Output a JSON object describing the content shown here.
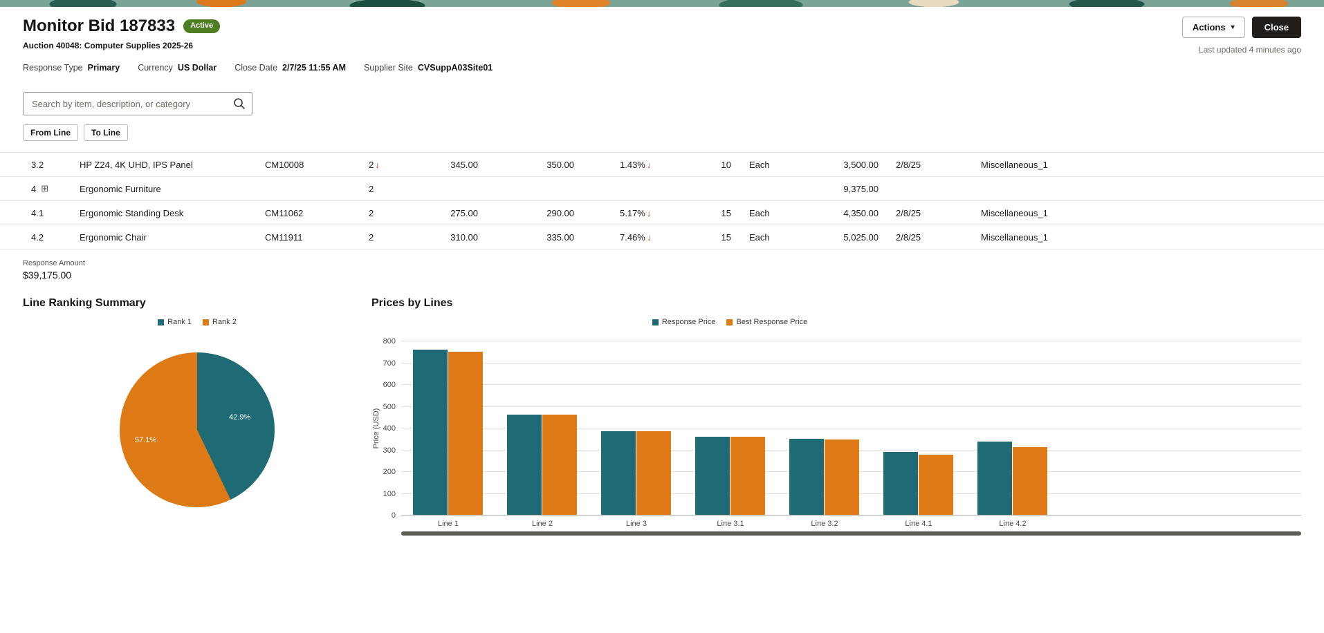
{
  "header": {
    "title": "Monitor Bid 187833",
    "status_badge": "Active",
    "subtitle": "Auction 40048: Computer Supplies 2025-26",
    "actions_label": "Actions",
    "close_label": "Close",
    "last_updated": "Last updated 4 minutes ago"
  },
  "meta": [
    {
      "label": "Response Type",
      "value": "Primary"
    },
    {
      "label": "Currency",
      "value": "US Dollar"
    },
    {
      "label": "Close Date",
      "value": "2/7/25 11:55 AM"
    },
    {
      "label": "Supplier Site",
      "value": "CVSuppA03Site01"
    }
  ],
  "search": {
    "placeholder": "Search by item, description, or category"
  },
  "filters": {
    "from_line_label": "From Line",
    "to_line_label": "To Line"
  },
  "icons": {
    "caret": "▾",
    "group": "⊞",
    "down_arrow": "↓"
  },
  "colors": {
    "status_active": "#4f7d21",
    "accent_teal": "#1f6b75",
    "accent_orange": "#dd7a16",
    "close_button_bg": "#211e1c"
  },
  "table": {
    "rows": [
      {
        "line": "3.2",
        "group": false,
        "description": "HP Z24, 4K UHD, IPS Panel",
        "item": "CM10008",
        "rank": "2",
        "rank_arrow": "↓",
        "price": "345.00",
        "best_price": "350.00",
        "savings": "1.43%",
        "savings_arrow": "↓",
        "quantity": "10",
        "uom": "Each",
        "amount": "3,500.00",
        "date": "2/8/25",
        "category": "Miscellaneous_1"
      },
      {
        "line": "4",
        "group": true,
        "description": "Ergonomic Furniture",
        "item": "",
        "rank": "2",
        "rank_arrow": "",
        "price": "",
        "best_price": "",
        "savings": "",
        "savings_arrow": "",
        "quantity": "",
        "uom": "",
        "amount": "9,375.00",
        "date": "",
        "category": ""
      },
      {
        "line": "4.1",
        "group": false,
        "description": "Ergonomic Standing Desk",
        "item": "CM11062",
        "rank": "2",
        "rank_arrow": "",
        "price": "275.00",
        "best_price": "290.00",
        "savings": "5.17%",
        "savings_arrow": "↓",
        "quantity": "15",
        "uom": "Each",
        "amount": "4,350.00",
        "date": "2/8/25",
        "category": "Miscellaneous_1"
      },
      {
        "line": "4.2",
        "group": false,
        "description": "Ergonomic Chair",
        "item": "CM11911",
        "rank": "2",
        "rank_arrow": "",
        "price": "310.00",
        "best_price": "335.00",
        "savings": "7.46%",
        "savings_arrow": "↓",
        "quantity": "15",
        "uom": "Each",
        "amount": "5,025.00",
        "date": "2/8/25",
        "category": "Miscellaneous_1"
      }
    ]
  },
  "response_amount": {
    "label": "Response Amount",
    "value": "$39,175.00"
  },
  "chart_data": [
    {
      "type": "pie",
      "title": "Line Ranking Summary",
      "legend_position": "top",
      "slices": [
        {
          "label": "Rank 1",
          "value": 42.9,
          "label_text": "42.9%",
          "color": "#1f6b75"
        },
        {
          "label": "Rank 2",
          "value": 57.1,
          "label_text": "57.1%",
          "color": "#dd7a16"
        }
      ]
    },
    {
      "type": "bar",
      "title": "Prices by Lines",
      "ylabel": "Price (USD)",
      "ylim": [
        0,
        800
      ],
      "ytick_step": 100,
      "grid": true,
      "legend_position": "top",
      "categories": [
        "Line 1",
        "Line 2",
        "Line 3",
        "Line 3.1",
        "Line 3.2",
        "Line 4.1",
        "Line 4.2"
      ],
      "series": [
        {
          "name": "Response Price",
          "color": "#1f6b75",
          "values": [
            760,
            460,
            385,
            360,
            350,
            290,
            335
          ]
        },
        {
          "name": "Best Response Price",
          "color": "#dd7a16",
          "values": [
            750,
            460,
            385,
            360,
            345,
            275,
            310
          ]
        }
      ]
    }
  ]
}
